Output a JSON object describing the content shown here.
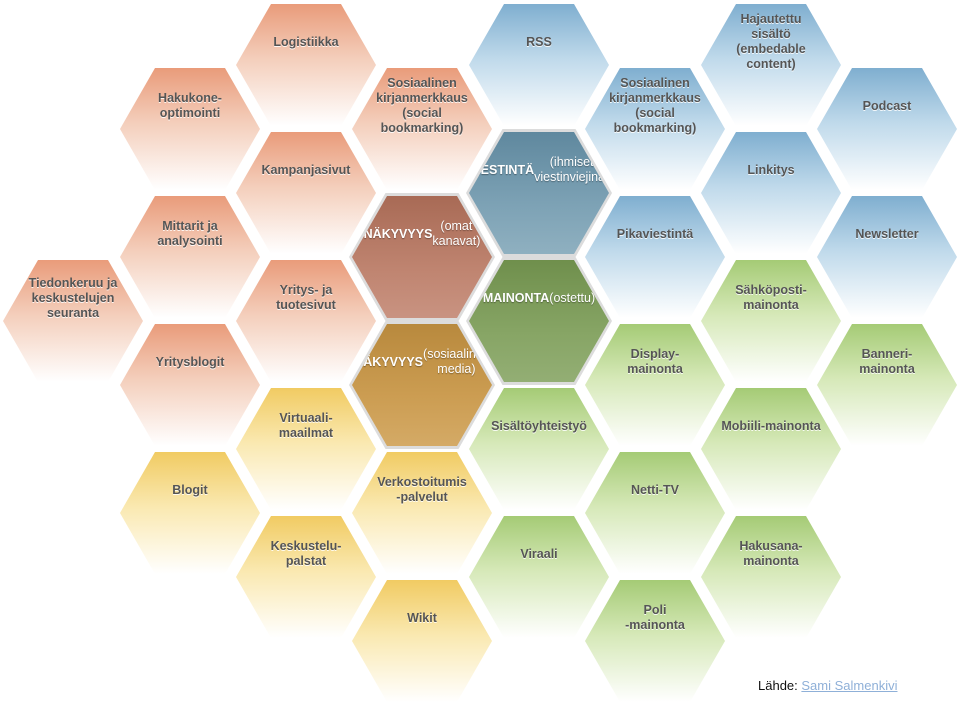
{
  "cells": [
    {
      "id": "logistiikka",
      "text": "Logistiikka",
      "color": "salmon"
    },
    {
      "id": "rss",
      "text": "RSS",
      "color": "blue"
    },
    {
      "id": "hajautettu",
      "text": "Hajautettu\nsisältö\n(embedable\ncontent)",
      "color": "blue"
    },
    {
      "id": "hakukone",
      "text": "Hakukone-\noptimointi",
      "color": "salmon"
    },
    {
      "id": "sos-kirjan-1",
      "text": "Sosiaalinen\nkirjanmerkkaus\n(social\nbookmarking)",
      "color": "salmon"
    },
    {
      "id": "sos-kirjan-2",
      "text": "Sosiaalinen\nkirjanmerkkaus\n(social\nbookmarking)",
      "color": "blue"
    },
    {
      "id": "podcast",
      "text": "Podcast",
      "color": "blue"
    },
    {
      "id": "kampanjasivut",
      "text": "Kampanjasivut",
      "color": "salmon"
    },
    {
      "id": "viestinta",
      "title": "VIESTINTÄ",
      "text": "(ihmiset\nviestinviejinä)",
      "color": "core-viestinta",
      "core": true
    },
    {
      "id": "linkitys",
      "text": "Linkitys",
      "color": "blue"
    },
    {
      "id": "mittarit",
      "text": "Mittarit ja\nanalysointi",
      "color": "salmon"
    },
    {
      "id": "nakyvyys-omat",
      "title": "NÄKYVYYS",
      "text": "(omat kanavat)",
      "color": "core-nakyvyys1",
      "core": true
    },
    {
      "id": "pikaviestinta",
      "text": "Pikaviestintä",
      "color": "blue"
    },
    {
      "id": "newsletter",
      "text": "Newsletter",
      "color": "blue"
    },
    {
      "id": "tiedonkeruu",
      "text": "Tiedonkeruu ja\nkeskustelujen\nseuranta",
      "color": "salmon"
    },
    {
      "id": "yritys-tuote",
      "text": "Yritys- ja\ntuotesivut",
      "color": "salmon"
    },
    {
      "id": "mainonta",
      "title": "MAINONTA",
      "text": "(ostettu)",
      "color": "core-mainonta",
      "core": true
    },
    {
      "id": "sahkoposti",
      "text": "Sähköposti-\nmainonta",
      "color": "green"
    },
    {
      "id": "yritysblogit",
      "text": "Yritysblogit",
      "color": "salmon"
    },
    {
      "id": "nakyvyys-some",
      "title": "NÄKYVYYS",
      "text": "(sosiaalinen\nmedia)",
      "color": "core-nakyvyys2",
      "core": true
    },
    {
      "id": "display",
      "text": "Display-\nmainonta",
      "color": "green"
    },
    {
      "id": "banneri",
      "text": "Banneri-\nmainonta",
      "color": "green"
    },
    {
      "id": "virtuaali",
      "text": "Virtuaali-\nmaailmat",
      "color": "yellow"
    },
    {
      "id": "sisaltoyhteistyo",
      "text": "Sisältöyhteistyö",
      "color": "green"
    },
    {
      "id": "mobiili",
      "text": "Mobiili-mainonta",
      "color": "green"
    },
    {
      "id": "blogit",
      "text": "Blogit",
      "color": "yellow"
    },
    {
      "id": "verkostoitumis",
      "text": "Verkostoitumis\n-palvelut",
      "color": "yellow"
    },
    {
      "id": "netti-tv",
      "text": "Netti-TV",
      "color": "green"
    },
    {
      "id": "keskustelupalstat",
      "text": "Keskustelu-\npalstat",
      "color": "yellow"
    },
    {
      "id": "viraali",
      "text": "Viraali",
      "color": "green"
    },
    {
      "id": "hakusana",
      "text": "Hakusana-\nmainonta",
      "color": "green"
    },
    {
      "id": "wikit",
      "text": "Wikit",
      "color": "yellow"
    },
    {
      "id": "poli",
      "text": "Poli\n-mainonta",
      "color": "green"
    }
  ],
  "source": {
    "label": "Lähde:",
    "author": "Sami Salmenkivi"
  }
}
